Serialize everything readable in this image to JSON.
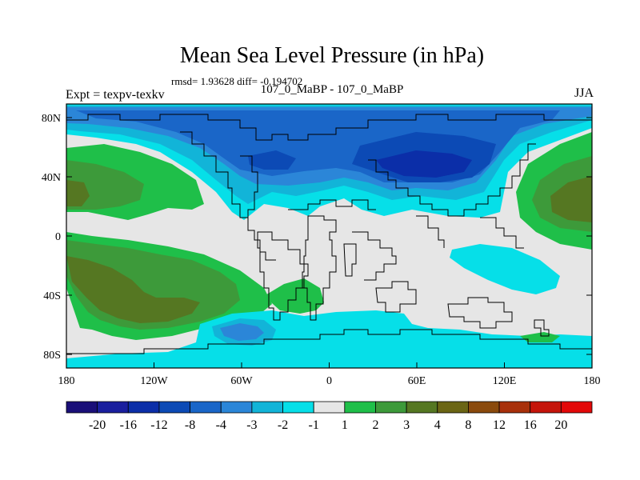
{
  "header": {
    "title": "Mean Sea Level Pressure (in hPa)",
    "stats": "rmsd= 1.93628 diff= -0.194702",
    "experiment": "Expt = texpv-texkv",
    "comparison": "107_0_MaBP - 107_0_MaBP",
    "season": "JJA"
  },
  "map": {
    "lat_ticks": [
      "80N",
      "40N",
      "0",
      "40S",
      "80S"
    ],
    "lon_ticks": [
      "180",
      "120W",
      "60W",
      "0",
      "60E",
      "120E",
      "180"
    ],
    "land_outline_color": "#000000",
    "ocean_background": "#e6e6e6"
  },
  "colorbar": {
    "labels": [
      "-20",
      "-16",
      "-12",
      "-8",
      "-4",
      "-3",
      "-2",
      "-1",
      "1",
      "2",
      "3",
      "4",
      "8",
      "12",
      "16",
      "20"
    ],
    "colors": [
      "#1a0f78",
      "#1a1f9e",
      "#0b2ea8",
      "#0c4ab5",
      "#1a66c8",
      "#2b86d8",
      "#12b4d8",
      "#06dfe8",
      "#e6e6e6",
      "#1fbf49",
      "#3d9a3a",
      "#557722",
      "#6b6514",
      "#8a4a0c",
      "#a8300a",
      "#c5140a",
      "#e30808"
    ]
  }
}
